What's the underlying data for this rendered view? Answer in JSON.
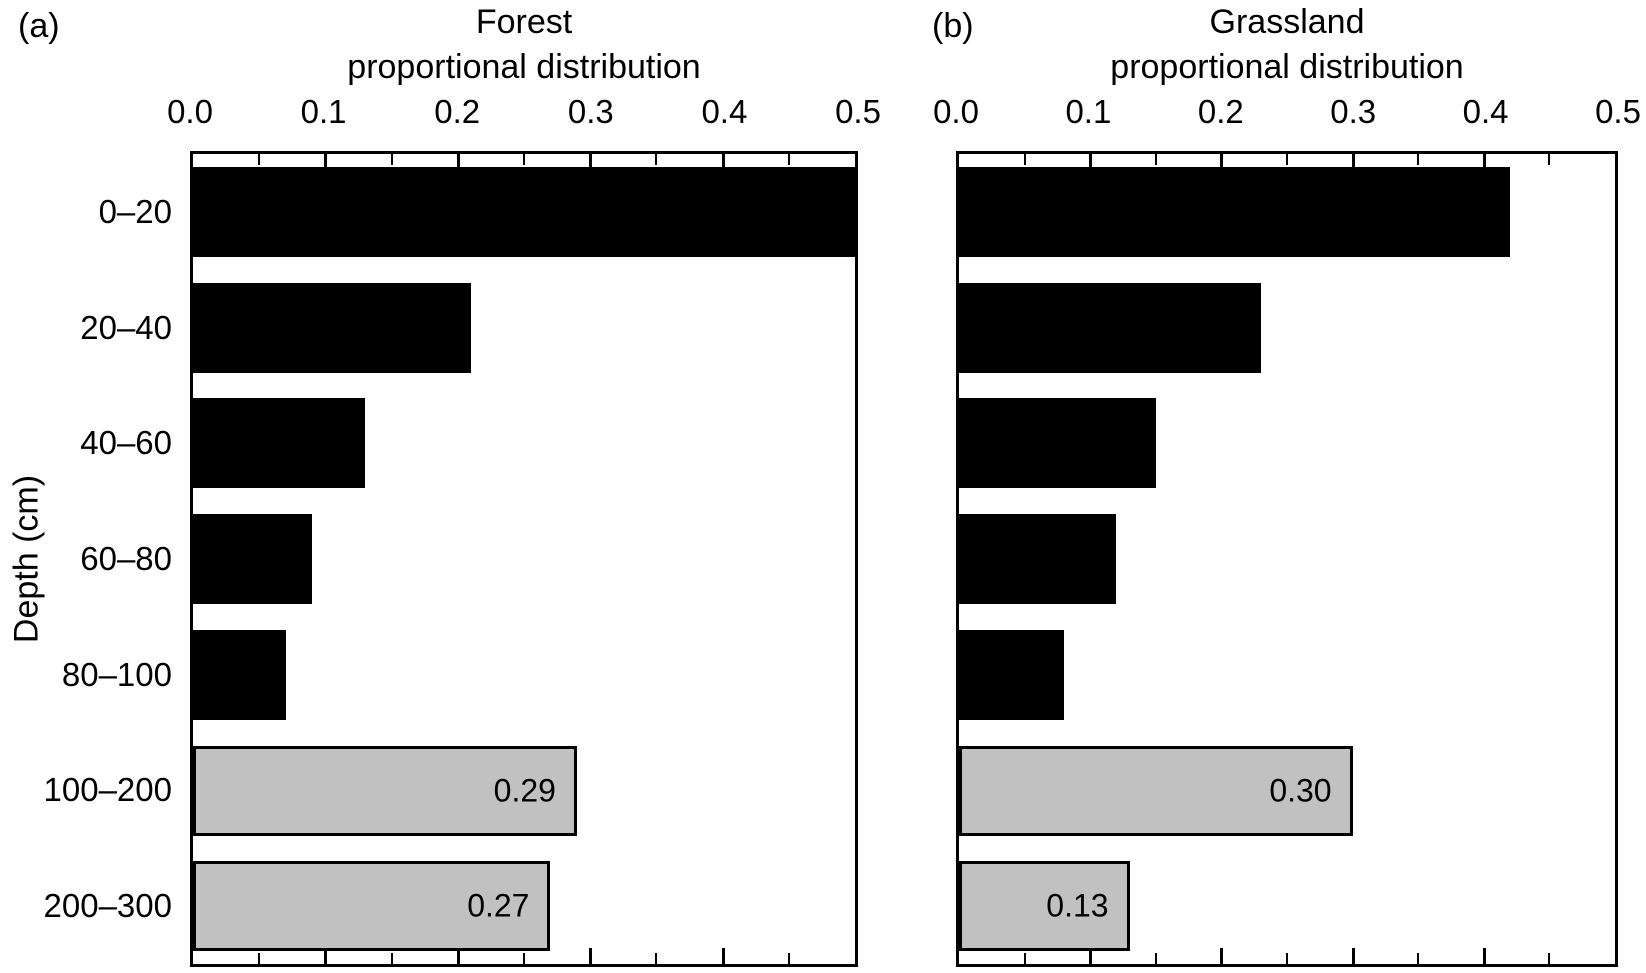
{
  "colors": {
    "bar_primary": "#000000",
    "bar_secondary": "#c1c1c1",
    "axis": "#000000",
    "background": "#ffffff"
  },
  "chart_data": [
    {
      "type": "bar",
      "orientation": "horizontal",
      "panel_label": "(a)",
      "title": "Forest proportional distribution",
      "title_lines": [
        "Forest",
        "proportional distribution"
      ],
      "ylabel": "Depth (cm)",
      "categories": [
        "0–20",
        "20–40",
        "40–60",
        "60–80",
        "80–100",
        "100–200",
        "200–300"
      ],
      "values": [
        0.5,
        0.21,
        0.13,
        0.09,
        0.07,
        0.29,
        0.27
      ],
      "bar_colors": [
        "#000000",
        "#000000",
        "#000000",
        "#000000",
        "#000000",
        "#c1c1c1",
        "#c1c1c1"
      ],
      "bar_value_labels": [
        "",
        "",
        "",
        "",
        "",
        "0.29",
        "0.27"
      ],
      "xlim": [
        0,
        0.5
      ],
      "x_ticks": [
        0.0,
        0.1,
        0.2,
        0.3,
        0.4,
        0.5
      ],
      "x_tick_labels": [
        "0.0",
        "0.1",
        "0.2",
        "0.3",
        "0.4",
        "0.5"
      ],
      "x_minor_tick_step": 0.05,
      "tick_label_position": "top",
      "grid": false,
      "legend": "none"
    },
    {
      "type": "bar",
      "orientation": "horizontal",
      "panel_label": "(b)",
      "title": "Grassland proportional distribution",
      "title_lines": [
        "Grassland",
        "proportional distribution"
      ],
      "categories": [
        "0–20",
        "20–40",
        "40–60",
        "60–80",
        "80–100",
        "100–200",
        "200–300"
      ],
      "values": [
        0.42,
        0.23,
        0.15,
        0.12,
        0.08,
        0.3,
        0.13
      ],
      "bar_colors": [
        "#000000",
        "#000000",
        "#000000",
        "#000000",
        "#000000",
        "#c1c1c1",
        "#c1c1c1"
      ],
      "bar_value_labels": [
        "",
        "",
        "",
        "",
        "",
        "0.30",
        "0.13"
      ],
      "xlim": [
        0,
        0.5
      ],
      "x_ticks": [
        0.0,
        0.1,
        0.2,
        0.3,
        0.4,
        0.5
      ],
      "x_tick_labels": [
        "0.0",
        "0.1",
        "0.2",
        "0.3",
        "0.4",
        "0.5"
      ],
      "x_minor_tick_step": 0.05,
      "tick_label_position": "top",
      "grid": false,
      "legend": "none"
    }
  ]
}
